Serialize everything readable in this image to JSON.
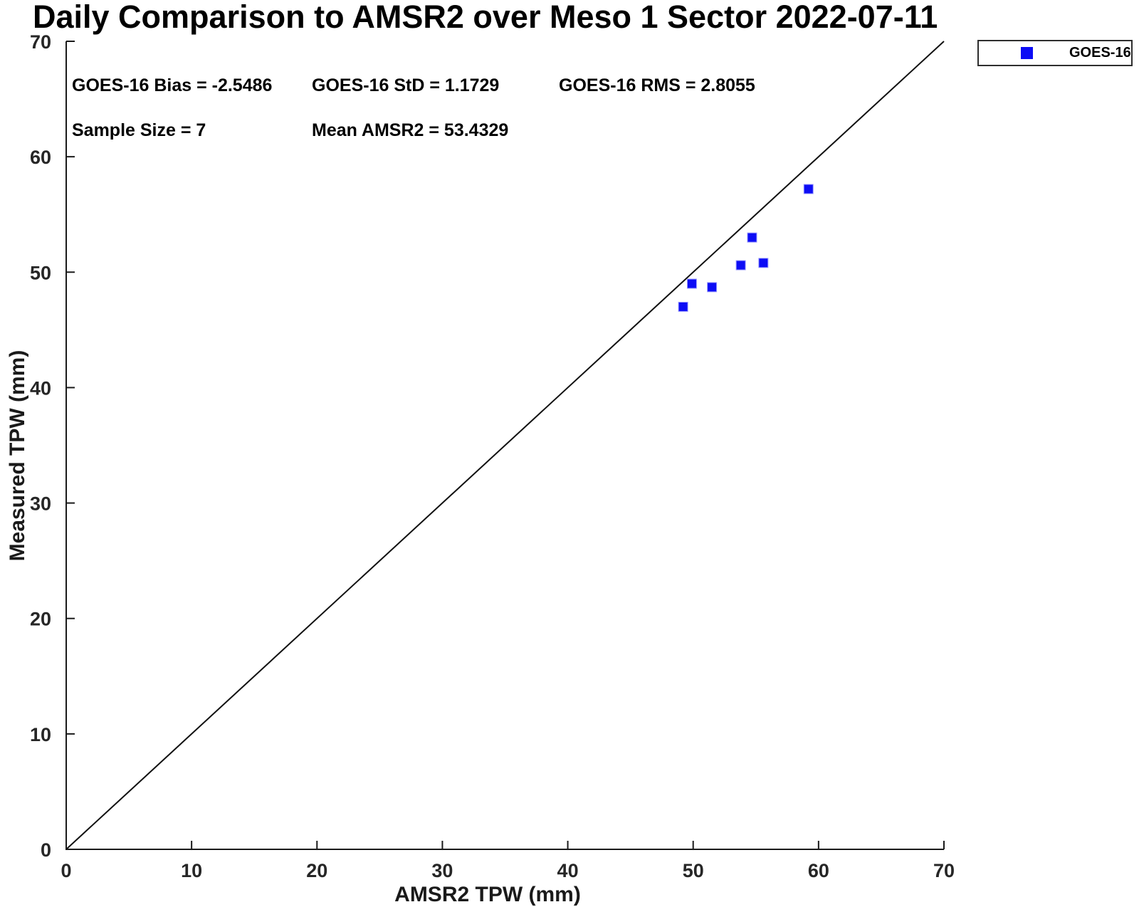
{
  "chart_data": {
    "type": "scatter",
    "title": "Daily Comparison to AMSR2 over Meso 1 Sector 2022-07-11",
    "xlabel": "AMSR2 TPW (mm)",
    "ylabel": "Measured TPW (mm)",
    "xlim": [
      0,
      70
    ],
    "ylim": [
      0,
      70
    ],
    "xticks": [
      0,
      10,
      20,
      30,
      40,
      50,
      60,
      70
    ],
    "yticks": [
      0,
      10,
      20,
      30,
      40,
      50,
      60,
      70
    ],
    "grid": false,
    "axis_color": "#1a1a1a",
    "legend": {
      "position": "top-right",
      "entries": [
        {
          "label": "GOES-16",
          "marker": "square",
          "color": "#0d0df5"
        }
      ]
    },
    "series": [
      {
        "name": "GOES-16",
        "marker": "square",
        "color": "#0d0df5",
        "marker_size_px": 13,
        "points": [
          [
            49.2,
            47.0
          ],
          [
            49.9,
            49.0
          ],
          [
            51.5,
            48.7
          ],
          [
            53.8,
            50.6
          ],
          [
            55.6,
            50.8
          ],
          [
            54.7,
            53.0
          ],
          [
            59.2,
            57.2
          ]
        ]
      }
    ],
    "reference_line": {
      "type": "identity",
      "x": [
        0,
        70
      ],
      "y": [
        0,
        70
      ],
      "color": "#111111"
    },
    "annotations": [
      {
        "id": "bias",
        "text": "GOES-16 Bias = -2.5486"
      },
      {
        "id": "std",
        "text": "GOES-16 StD = 1.1729"
      },
      {
        "id": "rms",
        "text": "GOES-16 RMS = 2.8055"
      },
      {
        "id": "sample_size",
        "text": "Sample Size = 7"
      },
      {
        "id": "mean_amsr2",
        "text": "Mean AMSR2 = 53.4329"
      }
    ]
  }
}
